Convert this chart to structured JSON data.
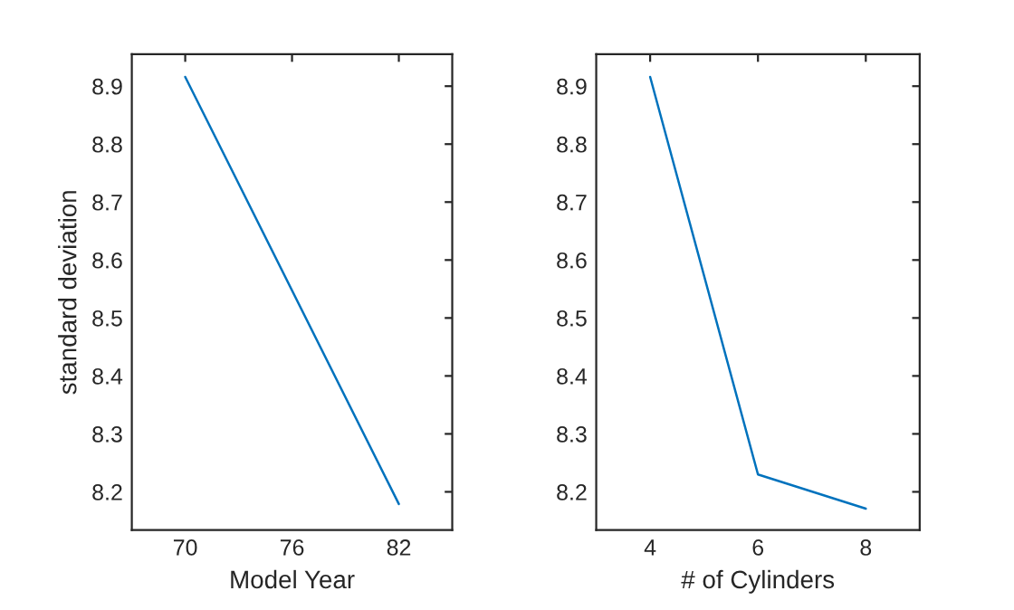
{
  "chart_data": [
    {
      "type": "line",
      "xlabel": "Model Year",
      "ylabel": "standard deviation",
      "x": [
        70,
        82
      ],
      "series": [
        {
          "color": "#0072bd",
          "values": [
            8.916,
            8.179
          ]
        }
      ],
      "xlim": [
        67,
        85
      ],
      "xticks": [
        70,
        76,
        82
      ],
      "ylim": [
        8.134,
        8.955
      ],
      "yticks": [
        8.2,
        8.3,
        8.4,
        8.5,
        8.6,
        8.7,
        8.8,
        8.9
      ],
      "grid": false,
      "legend": false
    },
    {
      "type": "line",
      "xlabel": "# of Cylinders",
      "x": [
        4,
        6,
        8
      ],
      "series": [
        {
          "color": "#0072bd",
          "values": [
            8.916,
            8.23,
            8.171
          ]
        }
      ],
      "xlim": [
        3,
        9
      ],
      "xticks": [
        4,
        6,
        8
      ],
      "ylim": [
        8.134,
        8.955
      ],
      "yticks": [
        8.2,
        8.3,
        8.4,
        8.5,
        8.6,
        8.7,
        8.8,
        8.9
      ],
      "grid": false,
      "legend": false
    }
  ]
}
